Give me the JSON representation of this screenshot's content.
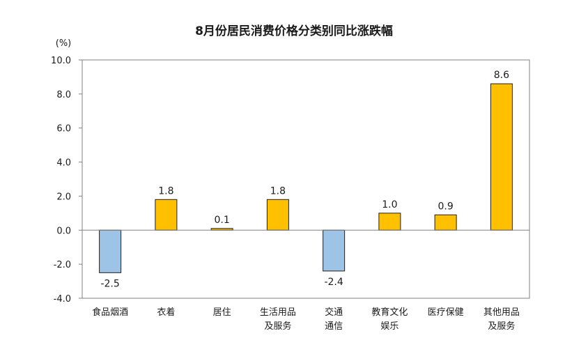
{
  "chart_data": {
    "type": "bar",
    "title": "8月份居民消费价格分类别同比涨跌幅",
    "ylabel": "(%)",
    "ylim": [
      -4.0,
      10.0
    ],
    "yticks": [
      "10.0",
      "8.0",
      "6.0",
      "4.0",
      "2.0",
      "0.0",
      "-2.0",
      "-4.0"
    ],
    "categories": [
      [
        "食品烟酒"
      ],
      [
        "衣着"
      ],
      [
        "居住"
      ],
      [
        "生活用品",
        "及服务"
      ],
      [
        "交通",
        "通信"
      ],
      [
        "教育文化",
        "娱乐"
      ],
      [
        "医疗保健"
      ],
      [
        "其他用品",
        "及服务"
      ]
    ],
    "values": [
      -2.5,
      1.8,
      0.1,
      1.8,
      -2.4,
      1.0,
      0.9,
      8.6
    ],
    "value_labels": [
      "-2.5",
      "1.8",
      "0.1",
      "1.8",
      "-2.4",
      "1.0",
      "0.9",
      "8.6"
    ],
    "grid": false,
    "legend": "none",
    "colors": {
      "positive": "#FFC000",
      "negative": "#9DC3E6",
      "bar_stroke": "#1f1f1f",
      "axis": "#808080"
    }
  }
}
